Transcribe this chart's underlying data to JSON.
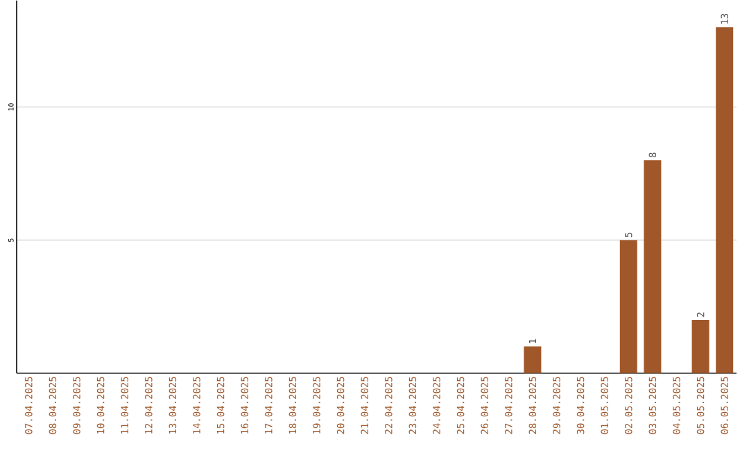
{
  "chart_data": {
    "type": "bar",
    "categories": [
      "07.04.2025",
      "08.04.2025",
      "09.04.2025",
      "10.04.2025",
      "11.04.2025",
      "12.04.2025",
      "13.04.2025",
      "14.04.2025",
      "15.04.2025",
      "16.04.2025",
      "17.04.2025",
      "18.04.2025",
      "19.04.2025",
      "20.04.2025",
      "21.04.2025",
      "22.04.2025",
      "23.04.2025",
      "24.04.2025",
      "25.04.2025",
      "26.04.2025",
      "27.04.2025",
      "28.04.2025",
      "29.04.2025",
      "30.04.2025",
      "01.05.2025",
      "02.05.2025",
      "03.05.2025",
      "04.05.2025",
      "05.05.2025",
      "06.05.2025"
    ],
    "values": [
      0,
      0,
      0,
      0,
      0,
      0,
      0,
      0,
      0,
      0,
      0,
      0,
      0,
      0,
      0,
      0,
      0,
      0,
      0,
      0,
      0,
      1,
      0,
      0,
      0,
      5,
      8,
      0,
      2,
      13
    ],
    "value_labels": [
      null,
      null,
      null,
      null,
      null,
      null,
      null,
      null,
      null,
      null,
      null,
      null,
      null,
      null,
      null,
      null,
      null,
      null,
      null,
      null,
      null,
      "1",
      null,
      null,
      null,
      "5",
      "8",
      null,
      "2",
      "13"
    ],
    "color": "#a0582a",
    "ylim": [
      0,
      14
    ],
    "yticks": [
      5,
      10
    ],
    "grid": "y"
  }
}
